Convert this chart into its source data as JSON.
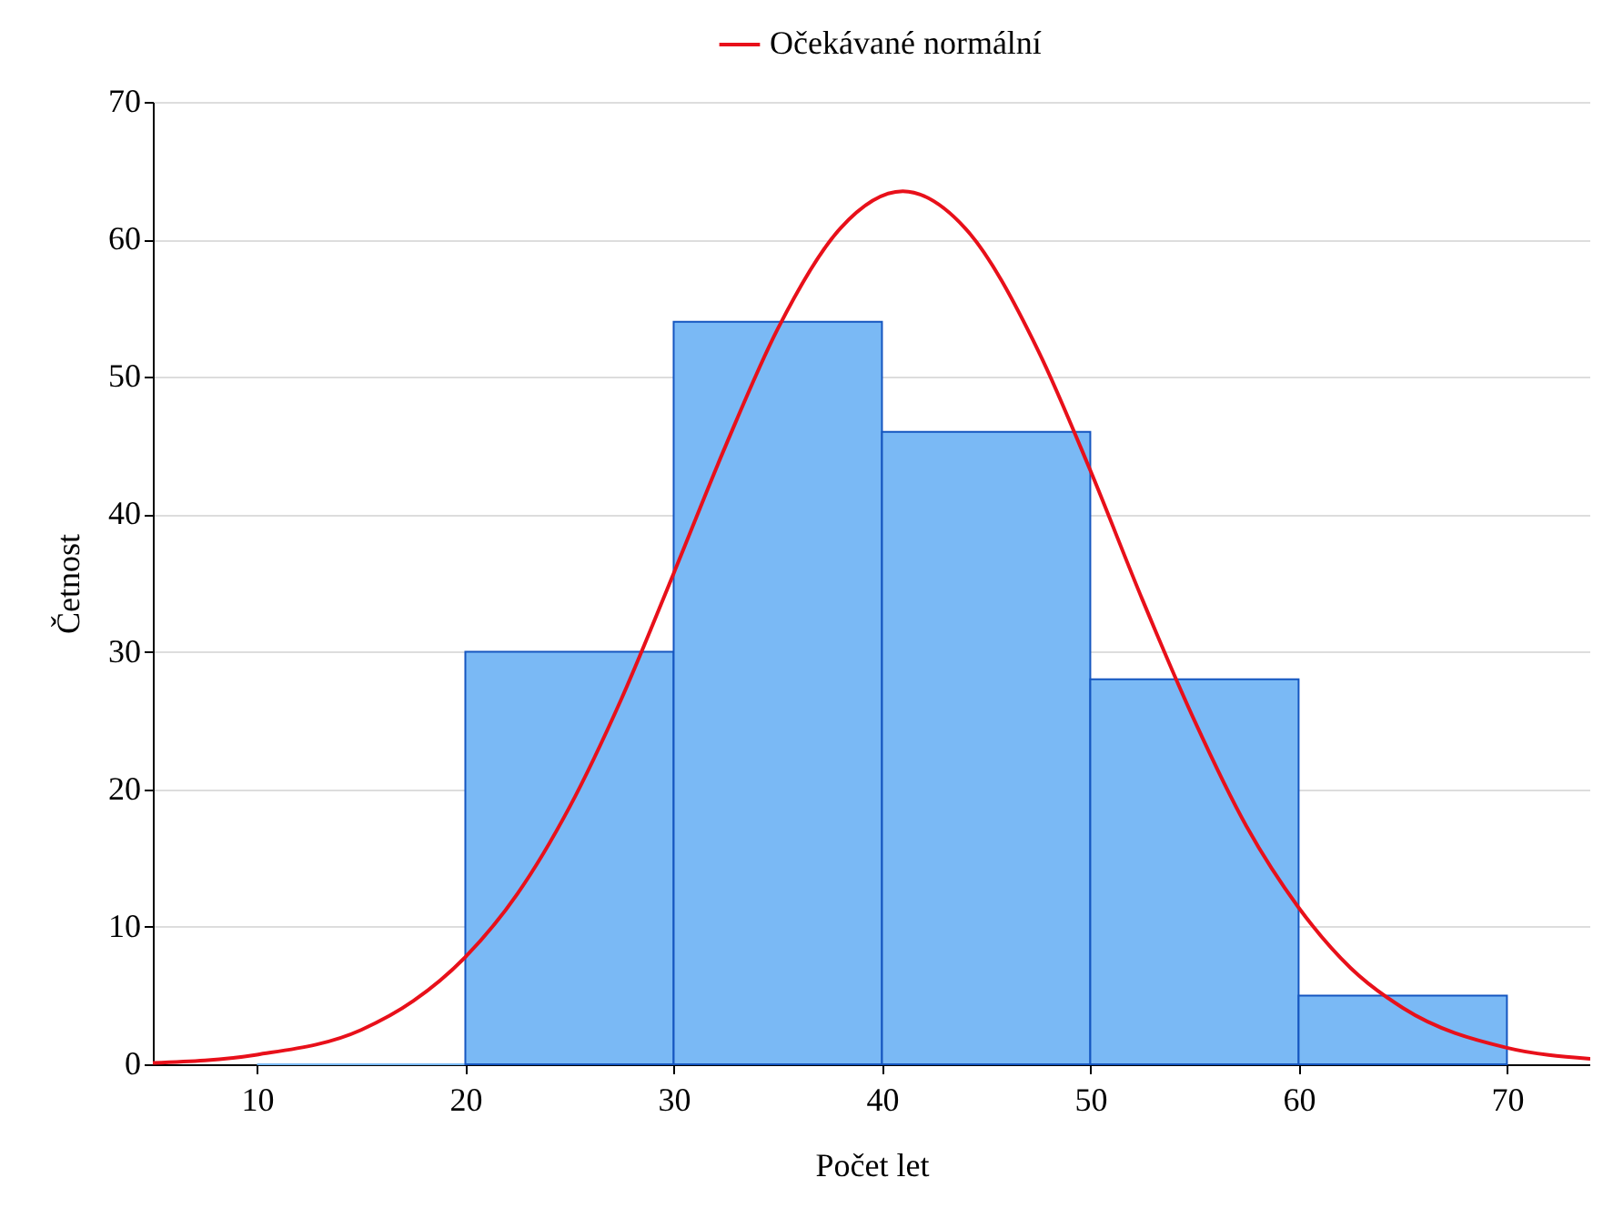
{
  "chart_data": {
    "type": "histogram",
    "xlabel": "Počet let",
    "ylabel": "Četnost",
    "bins": [
      10,
      20,
      30,
      40,
      50,
      60,
      70
    ],
    "values": [
      0,
      30,
      54,
      46,
      28,
      5
    ],
    "color": "#7ab9f5",
    "series": [
      {
        "type": "line",
        "name": "Očekávané normální",
        "color": "#e8101a",
        "x": [
          5,
          10,
          15,
          17.5,
          20,
          22.5,
          25,
          27.5,
          30,
          32.5,
          35,
          38,
          41,
          44,
          47.5,
          50,
          52.5,
          55,
          57.5,
          60,
          62.5,
          65,
          70,
          74
        ],
        "values": [
          0.1,
          0.7,
          2.5,
          4.6,
          7.8,
          12.4,
          18.7,
          26.6,
          35.7,
          45,
          53.5,
          60.8,
          63.5,
          60.8,
          51.9,
          43.2,
          33.8,
          25,
          17.3,
          11.4,
          7,
          4.1,
          1.2,
          0.4
        ]
      }
    ],
    "xlim": [
      5,
      74
    ],
    "xticks": [
      10,
      20,
      30,
      40,
      50,
      60,
      70
    ],
    "ylim": [
      0,
      70
    ],
    "yticks": [
      0,
      10,
      20,
      30,
      40,
      50,
      60,
      70
    ],
    "grid": "y",
    "legend": "top"
  }
}
